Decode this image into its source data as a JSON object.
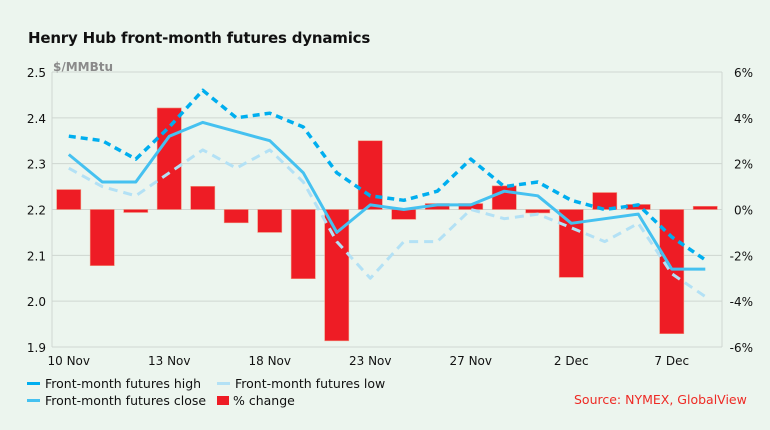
{
  "title": "Henry Hub front-month futures dynamics",
  "unit_label": "$/MMBtu",
  "source": "Source: NYMEX, GlobalView",
  "colors": {
    "high": "#00aeef",
    "close": "#45c1f0",
    "low": "#b3e1f5",
    "change": "#ee1c25",
    "grid": "#cfd6d1"
  },
  "legend": [
    {
      "label": "Front-month futures high",
      "key": "high"
    },
    {
      "label": "Front-month futures low",
      "key": "low"
    },
    {
      "label": "Front-month futures close",
      "key": "close"
    },
    {
      "label": "% change",
      "key": "change"
    }
  ],
  "chart_data": {
    "type": "line+bar",
    "title": "Henry Hub front-month futures dynamics",
    "ylabel": "$/MMBtu",
    "ylabel_right": "% change",
    "ylim": [
      1.9,
      2.5
    ],
    "yticks": [
      "2.5",
      "2.4",
      "2.3",
      "2.2",
      "2.1",
      "2.0",
      "1.9"
    ],
    "ylim_right": [
      -6,
      6
    ],
    "yticks_right": [
      "6%",
      "4%",
      "2%",
      "0%",
      "-2%",
      "-4%",
      "-6%"
    ],
    "grid": true,
    "x": [
      "10 Nov",
      "11 Nov",
      "12 Nov",
      "13 Nov",
      "16 Nov",
      "17 Nov",
      "18 Nov",
      "19 Nov",
      "20 Nov",
      "23 Nov",
      "24 Nov",
      "25 Nov",
      "27 Nov",
      "30 Nov",
      "1 Dec",
      "2 Dec",
      "3 Dec",
      "4 Dec",
      "7 Dec",
      "8 Dec"
    ],
    "xtick_labels": [
      {
        "index": 0,
        "label": "10 Nov"
      },
      {
        "index": 3,
        "label": "13 Nov"
      },
      {
        "index": 6,
        "label": "18 Nov"
      },
      {
        "index": 9,
        "label": "23 Nov"
      },
      {
        "index": 12,
        "label": "27 Nov"
      },
      {
        "index": 15,
        "label": "2 Dec"
      },
      {
        "index": 18,
        "label": "7 Dec"
      }
    ],
    "series": [
      {
        "name": "Front-month futures high",
        "type": "line",
        "style": "dashed",
        "axis": "left",
        "values": [
          2.36,
          2.35,
          2.31,
          2.38,
          2.46,
          2.4,
          2.41,
          2.38,
          2.28,
          2.23,
          2.22,
          2.24,
          2.31,
          2.25,
          2.26,
          2.22,
          2.2,
          2.21,
          2.14,
          2.09
        ]
      },
      {
        "name": "Front-month futures low",
        "type": "line",
        "style": "dashed",
        "axis": "left",
        "values": [
          2.29,
          2.25,
          2.23,
          2.28,
          2.33,
          2.29,
          2.33,
          2.26,
          2.13,
          2.05,
          2.13,
          2.13,
          2.2,
          2.18,
          2.19,
          2.16,
          2.13,
          2.17,
          2.06,
          2.01
        ]
      },
      {
        "name": "Front-month futures close",
        "type": "line",
        "style": "solid",
        "axis": "left",
        "values": [
          2.32,
          2.26,
          2.26,
          2.36,
          2.39,
          2.37,
          2.35,
          2.28,
          2.15,
          2.21,
          2.2,
          2.21,
          2.21,
          2.24,
          2.23,
          2.17,
          2.18,
          2.19,
          2.07,
          2.07
        ]
      },
      {
        "name": "% change",
        "type": "bar",
        "axis": "right",
        "values": [
          0.87,
          -2.45,
          -0.13,
          4.43,
          1.01,
          -0.58,
          -1.0,
          -3.02,
          -5.73,
          3.0,
          -0.43,
          0.26,
          0.26,
          1.03,
          -0.15,
          -2.96,
          0.74,
          0.22,
          -5.42,
          0.14
        ]
      }
    ]
  }
}
